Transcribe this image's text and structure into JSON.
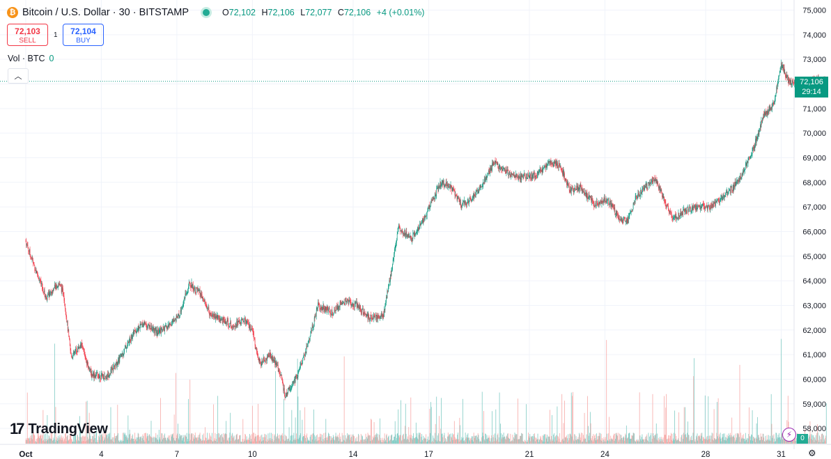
{
  "header": {
    "coin_letter": "₿",
    "symbol_title": "Bitcoin / U.S. Dollar · 30 · BITSTAMP",
    "o_label": "O",
    "o_value": "72,102",
    "h_label": "H",
    "h_value": "72,106",
    "l_label": "L",
    "l_value": "72,077",
    "c_label": "C",
    "c_value": "72,106",
    "change": "+4 (+0.01%)"
  },
  "trade": {
    "sell_price": "72,103",
    "sell_label": "SELL",
    "buy_price": "72,104",
    "buy_label": "BUY",
    "spread": "1"
  },
  "volume_indicator": {
    "label": "Vol · BTC",
    "value": "0"
  },
  "price_tag": {
    "price": "72,106",
    "countdown": "29:14"
  },
  "volume_tag": "0",
  "brand": "TradingView",
  "colors": {
    "up": "#089981",
    "down": "#f23645",
    "vol_up": "#80cbc4",
    "vol_down": "#f7a9a7",
    "grid": "#f0f3fa"
  },
  "chart_data": {
    "type": "candlestick",
    "title": "Bitcoin / U.S. Dollar · 30 · BITSTAMP",
    "interval": "30m",
    "y_ticks": [
      "75,000",
      "74,000",
      "73,000",
      "72,000",
      "71,000",
      "70,000",
      "69,000",
      "68,000",
      "67,000",
      "66,000",
      "65,000",
      "64,000",
      "63,000",
      "62,000",
      "61,000",
      "60,000",
      "59,000",
      "58,000"
    ],
    "ylim": [
      57800,
      75000
    ],
    "x_ticks": [
      "Oct",
      "4",
      "7",
      "10",
      "14",
      "17",
      "21",
      "24",
      "28",
      "31"
    ],
    "last_price": 72106,
    "price_path": [
      [
        0,
        65600
      ],
      [
        0.3,
        64700
      ],
      [
        0.8,
        63300
      ],
      [
        1.3,
        63900
      ],
      [
        1.5,
        63500
      ],
      [
        1.8,
        60900
      ],
      [
        2.2,
        61400
      ],
      [
        2.6,
        60200
      ],
      [
        3.2,
        60100
      ],
      [
        3.6,
        60600
      ],
      [
        4.3,
        61900
      ],
      [
        4.7,
        62300
      ],
      [
        5.2,
        61900
      ],
      [
        5.6,
        62100
      ],
      [
        6.1,
        62600
      ],
      [
        6.5,
        63900
      ],
      [
        6.9,
        63500
      ],
      [
        7.3,
        62700
      ],
      [
        7.8,
        62400
      ],
      [
        8.2,
        62200
      ],
      [
        8.7,
        62400
      ],
      [
        9.0,
        61900
      ],
      [
        9.3,
        60600
      ],
      [
        9.7,
        61000
      ],
      [
        10.1,
        60300
      ],
      [
        10.3,
        59300
      ],
      [
        10.8,
        60200
      ],
      [
        11.2,
        61400
      ],
      [
        11.6,
        63000
      ],
      [
        12.2,
        62700
      ],
      [
        12.6,
        63200
      ],
      [
        13.2,
        63000
      ],
      [
        13.6,
        62500
      ],
      [
        14.2,
        62600
      ],
      [
        14.5,
        64300
      ],
      [
        14.8,
        66200
      ],
      [
        15.3,
        65700
      ],
      [
        15.7,
        66300
      ],
      [
        16.1,
        67200
      ],
      [
        16.5,
        68000
      ],
      [
        16.9,
        67800
      ],
      [
        17.3,
        67100
      ],
      [
        17.7,
        67300
      ],
      [
        18.2,
        68000
      ],
      [
        18.6,
        68800
      ],
      [
        19.1,
        68400
      ],
      [
        19.6,
        68200
      ],
      [
        20.3,
        68300
      ],
      [
        20.8,
        68800
      ],
      [
        21.2,
        68700
      ],
      [
        21.6,
        67700
      ],
      [
        22.0,
        67800
      ],
      [
        22.6,
        67100
      ],
      [
        23.1,
        67300
      ],
      [
        23.6,
        66500
      ],
      [
        23.9,
        66400
      ],
      [
        24.2,
        67300
      ],
      [
        24.6,
        67800
      ],
      [
        25.0,
        68200
      ],
      [
        25.3,
        67400
      ],
      [
        25.7,
        66500
      ],
      [
        26.1,
        66800
      ],
      [
        26.6,
        67000
      ],
      [
        27.2,
        67000
      ],
      [
        27.7,
        67400
      ],
      [
        28.1,
        67800
      ],
      [
        28.5,
        68400
      ],
      [
        28.9,
        69400
      ],
      [
        29.3,
        70700
      ],
      [
        29.7,
        71200
      ],
      [
        30.0,
        72800
      ],
      [
        30.3,
        72100
      ],
      [
        30.6,
        72000
      ],
      [
        31.0,
        71800
      ],
      [
        31.3,
        72200
      ],
      [
        31.8,
        72100
      ]
    ]
  }
}
